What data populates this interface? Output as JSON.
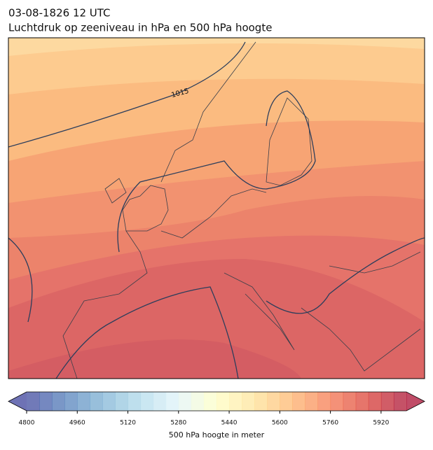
{
  "title": [
    "03-08-1826 12 UTC",
    "Luchtdruk op zeeniveau in hPa en 500 hPa hoogte"
  ],
  "contour_labels": [
    "1015"
  ],
  "colorbar": {
    "label": "500 hPa hoogte in meter",
    "lim": [
      4800,
      6000
    ],
    "step": 40,
    "ticks": [
      4800,
      4960,
      5120,
      5280,
      5440,
      5600,
      5760,
      5920
    ],
    "colormap": [
      "#313695",
      "#4575b4",
      "#74add1",
      "#abd9e9",
      "#e0f3f8",
      "#ffffbf",
      "#fee090",
      "#fdae61",
      "#f46d43",
      "#d73027",
      "#a50026"
    ],
    "opacity": 0.7
  }
}
